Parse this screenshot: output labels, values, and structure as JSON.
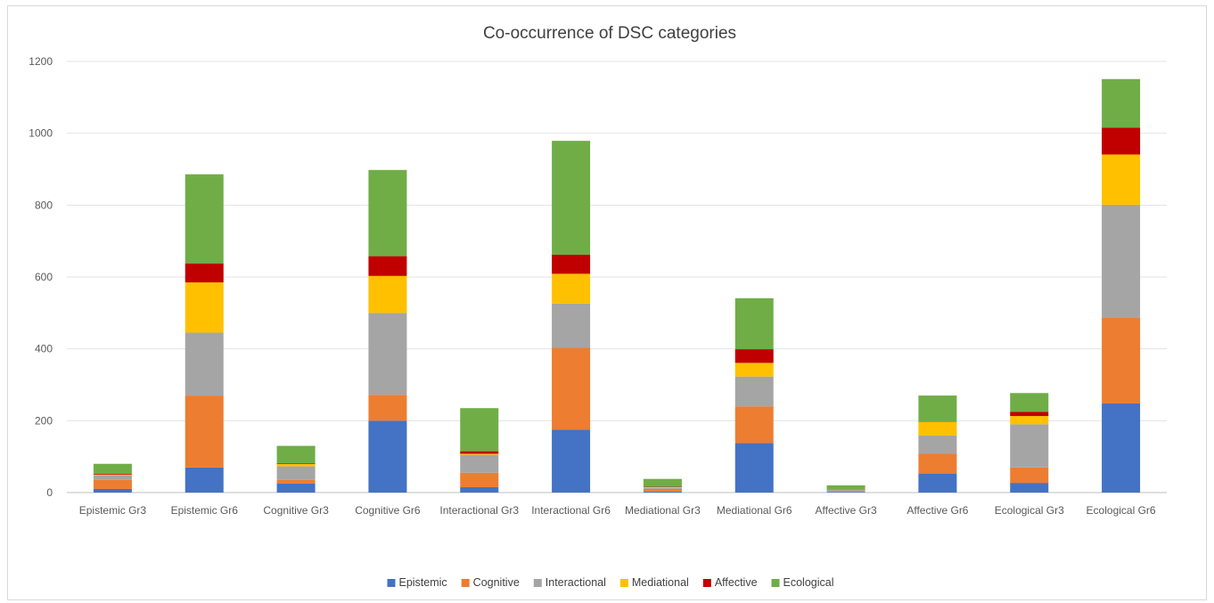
{
  "chart_data": {
    "type": "bar",
    "stacked": true,
    "title": "Co-occurrence of DSC categories",
    "xlabel": "",
    "ylabel": "",
    "ylim": [
      0,
      1200
    ],
    "yticks": [
      0,
      200,
      400,
      600,
      800,
      1000,
      1200
    ],
    "grid": true,
    "legend_position": "bottom",
    "categories": [
      "Epistemic Gr3",
      "Epistemic Gr6",
      "Cognitive Gr3",
      "Cognitive Gr6",
      "Interactional Gr3",
      "Interactional Gr6",
      "Mediational Gr3",
      "Mediational Gr6",
      "Affective Gr3",
      "Affective Gr6",
      "Ecological Gr3",
      "Ecological Gr6"
    ],
    "series": [
      {
        "name": "Epistemic",
        "color": "#4472C4",
        "values": [
          10,
          70,
          25,
          200,
          15,
          175,
          3,
          138,
          2,
          53,
          27,
          248
        ]
      },
      {
        "name": "Cognitive",
        "color": "#ED7D31",
        "values": [
          25,
          200,
          10,
          72,
          40,
          228,
          7,
          102,
          2,
          55,
          43,
          238
        ]
      },
      {
        "name": "Interactional",
        "color": "#A5A5A5",
        "values": [
          13,
          175,
          38,
          228,
          50,
          123,
          3,
          83,
          4,
          51,
          120,
          315
        ]
      },
      {
        "name": "Mediational",
        "color": "#FFC000",
        "values": [
          2,
          140,
          7,
          103,
          3,
          83,
          2,
          38,
          1,
          38,
          23,
          140
        ]
      },
      {
        "name": "Affective",
        "color": "#C00000",
        "values": [
          2,
          53,
          2,
          55,
          7,
          53,
          1,
          38,
          1,
          1,
          12,
          75
        ]
      },
      {
        "name": "Ecological",
        "color": "#70AD47",
        "values": [
          28,
          248,
          48,
          240,
          120,
          317,
          22,
          142,
          10,
          72,
          52,
          135
        ]
      }
    ]
  }
}
